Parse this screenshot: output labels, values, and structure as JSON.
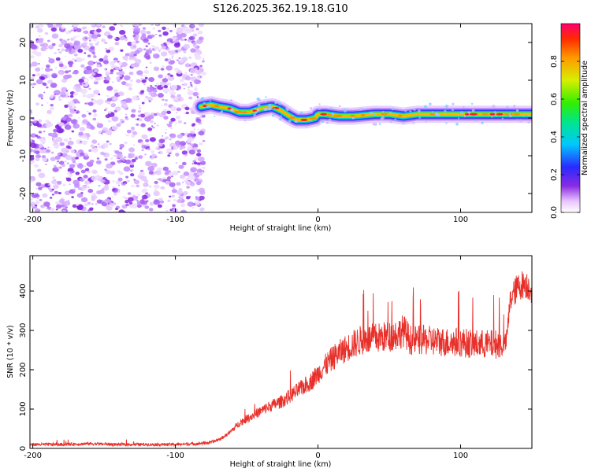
{
  "title": "S126.2025.362.19.18.G10",
  "chart_data": [
    {
      "type": "heatmap",
      "xlabel": "Height of straight line (km)",
      "ylabel": "Frequency (Hz)",
      "xlim": [
        -202,
        150
      ],
      "ylim": [
        -25,
        25
      ],
      "xticks": [
        -200,
        -100,
        0,
        100
      ],
      "yticks": [
        -20,
        -10,
        0,
        10,
        20
      ],
      "noise_region_x": [
        -202,
        -80
      ],
      "signal_ridge": {
        "x": [
          -82,
          -75,
          -70,
          -62,
          -55,
          -48,
          -40,
          -32,
          -26,
          -20,
          -15,
          -8,
          -2,
          0,
          5,
          15,
          25,
          40,
          50,
          60,
          70,
          80,
          100,
          120,
          150
        ],
        "frequency": [
          3,
          3.5,
          3,
          2.5,
          1.5,
          1.5,
          2.5,
          3,
          2,
          0.5,
          -0.5,
          -0.5,
          0,
          1,
          1,
          0.5,
          0.5,
          1,
          1,
          0.5,
          1,
          1,
          1,
          1,
          1
        ]
      },
      "colorbar": {
        "label": "Normalized spectral amplitude",
        "ticks": [
          0.0,
          0.2,
          0.4,
          0.6,
          0.8
        ],
        "range": [
          0,
          1
        ]
      }
    },
    {
      "type": "line",
      "xlabel": "Height of straight line (km)",
      "ylabel": "SNR (10 * v/v)",
      "xlim": [
        -202,
        150
      ],
      "ylim": [
        0,
        490
      ],
      "xticks": [
        -200,
        -100,
        0,
        100
      ],
      "yticks": [
        0,
        100,
        200,
        300,
        400
      ],
      "color": "#e8302a",
      "series": [
        {
          "name": "SNR",
          "x": [
            -202,
            -180,
            -160,
            -140,
            -120,
            -100,
            -85,
            -75,
            -68,
            -62,
            -55,
            -45,
            -35,
            -25,
            -15,
            -5,
            5,
            12,
            20,
            25,
            30,
            40,
            50,
            55,
            60,
            62,
            65,
            75,
            90,
            100,
            110,
            120,
            130,
            132,
            135,
            140,
            145,
            150
          ],
          "y": [
            10,
            10,
            12,
            10,
            10,
            10,
            12,
            15,
            25,
            40,
            65,
            85,
            105,
            120,
            145,
            170,
            210,
            235,
            255,
            265,
            275,
            280,
            285,
            290,
            300,
            290,
            275,
            275,
            270,
            270,
            265,
            265,
            265,
            270,
            380,
            410,
            420,
            405
          ]
        }
      ]
    }
  ]
}
